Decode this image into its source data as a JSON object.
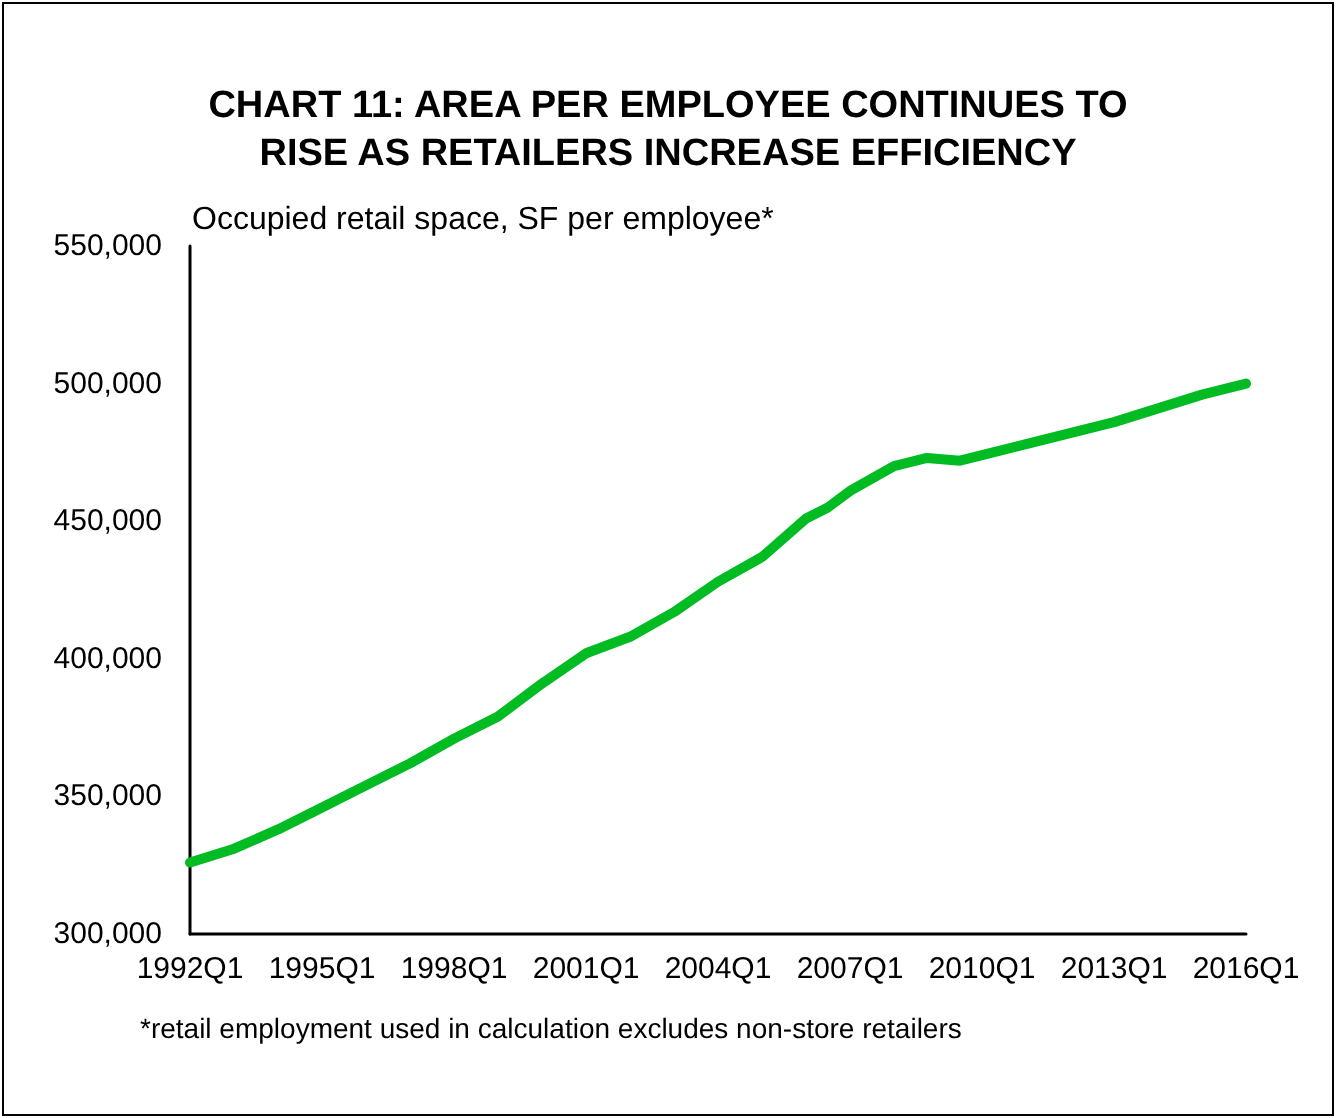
{
  "chart_data": {
    "type": "line",
    "title": "CHART 11: AREA PER EMPLOYEE CONTINUES TO\nRISE AS RETAILERS INCREASE EFFICIENCY",
    "ylabel": "Occupied retail space, SF per employee*",
    "x": [
      "1992-01",
      "1993-01",
      "1994-01",
      "1995-01",
      "1996-01",
      "1997-01",
      "1998-01",
      "1999-01",
      "2000-01",
      "2001-01",
      "2002-01",
      "2003-01",
      "2004-01",
      "2005-01",
      "2006-01",
      "2006-07",
      "2007-01",
      "2008-01",
      "2008-10",
      "2009-07",
      "2010-01",
      "2011-01",
      "2012-01",
      "2013-01",
      "2014-01",
      "2015-01",
      "2016-01"
    ],
    "series": [
      {
        "color": "#00bb22",
        "values": [
          326000,
          331000,
          338000,
          346000,
          354000,
          362000,
          371000,
          379000,
          391000,
          402000,
          408000,
          417000,
          428000,
          437000,
          451000,
          455000,
          461000,
          470000,
          473000,
          472000,
          474000,
          478000,
          482000,
          486000,
          491000,
          496000,
          500000
        ]
      }
    ],
    "xlim": [
      "1992-01",
      "2016-01"
    ],
    "xticks": [
      {
        "value": "1992-01",
        "label": "1992Q1"
      },
      {
        "value": "1995-01",
        "label": "1995Q1"
      },
      {
        "value": "1998-01",
        "label": "1998Q1"
      },
      {
        "value": "2001-01",
        "label": "2001Q1"
      },
      {
        "value": "2004-01",
        "label": "2004Q1"
      },
      {
        "value": "2007-01",
        "label": "2007Q1"
      },
      {
        "value": "2010-01",
        "label": "2010Q1"
      },
      {
        "value": "2013-01",
        "label": "2013Q1"
      },
      {
        "value": "2016-01",
        "label": "2016Q1"
      }
    ],
    "ylim": [
      300000,
      550000
    ],
    "yticks": [
      {
        "value": 300000,
        "label": "300,000"
      },
      {
        "value": 350000,
        "label": "350,000"
      },
      {
        "value": 400000,
        "label": "400,000"
      },
      {
        "value": 450000,
        "label": "450,000"
      },
      {
        "value": 500000,
        "label": "500,000"
      },
      {
        "value": 550000,
        "label": "550,000"
      }
    ],
    "annotations": [
      "*retail employment used in calculation excludes non-store retailers"
    ],
    "grid": false,
    "marker": "none",
    "line_style": "solid"
  }
}
